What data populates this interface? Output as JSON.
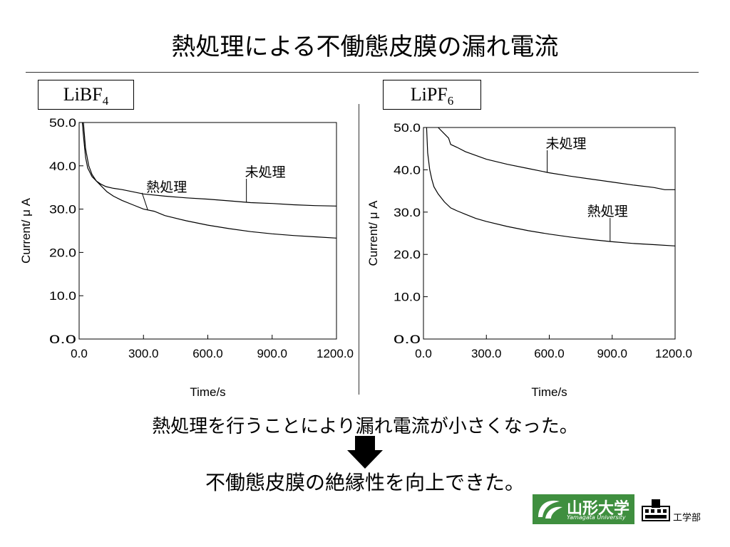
{
  "title": "熱処理による不働態皮膜の漏れ電流",
  "left_box": {
    "base": "LiBF",
    "sub": "4"
  },
  "right_box": {
    "base": "LiPF",
    "sub": "6"
  },
  "sentence": "熱処理を行うことにより漏れ電流が小さくなった。",
  "conclusion": "不働態皮膜の絶縁性を向上できた。",
  "logo": {
    "name": "山形大学",
    "sub": "Yamagata University"
  },
  "faculty": "工学部",
  "colors": {
    "logo_green": "#3f8f3f",
    "line": "#000000"
  },
  "chart_data": [
    {
      "type": "line",
      "title": "LiBF4",
      "xlabel": "Time/s",
      "ylabel": "Current/ μ A",
      "xlim": [
        0,
        1200
      ],
      "ylim": [
        0,
        50
      ],
      "x_ticks": [
        "0.0",
        "300.0",
        "600.0",
        "900.0",
        "1200.0"
      ],
      "y_ticks": [
        "0.0",
        "10.0",
        "20.0",
        "30.0",
        "40.0",
        "50.0"
      ],
      "grid": false,
      "series": [
        {
          "name": "未処理",
          "x": [
            15,
            20,
            30,
            40,
            60,
            80,
            100,
            125,
            160,
            200,
            300,
            400,
            500,
            600,
            700,
            800,
            900,
            1000,
            1100,
            1200
          ],
          "y": [
            50,
            47,
            42,
            39.5,
            37.5,
            36.5,
            35.8,
            35.2,
            34.8,
            34.5,
            33.5,
            33.0,
            32.6,
            32.3,
            31.9,
            31.5,
            31.3,
            31.0,
            30.8,
            30.7
          ]
        },
        {
          "name": "熱処理",
          "x": [
            20,
            30,
            45,
            60,
            80,
            100,
            130,
            160,
            200,
            250,
            300,
            350,
            400,
            500,
            600,
            700,
            800,
            900,
            1000,
            1100,
            1200
          ],
          "y": [
            50,
            44,
            40,
            38,
            36.5,
            35.5,
            34,
            33,
            32,
            31,
            30,
            29.5,
            28.5,
            27.3,
            26.3,
            25.5,
            24.8,
            24.3,
            23.9,
            23.6,
            23.3
          ]
        }
      ],
      "annotations": [
        {
          "text": "熱処理",
          "series": 1,
          "at_x": 320
        },
        {
          "text": "未処理",
          "series": 0,
          "at_x": 780
        }
      ]
    },
    {
      "type": "line",
      "title": "LiPF6",
      "xlabel": "Time/s",
      "ylabel": "Current/ μ A",
      "xlim": [
        0,
        1200
      ],
      "ylim": [
        0,
        50
      ],
      "x_ticks": [
        "0.0",
        "300.0",
        "600.0",
        "900.0",
        "1200.0"
      ],
      "y_ticks": [
        "0.0",
        "10.0",
        "20.0",
        "30.0",
        "40.0",
        "50.0"
      ],
      "grid": false,
      "series": [
        {
          "name": "未処理",
          "x": [
            70,
            100,
            120,
            130,
            160,
            200,
            300,
            400,
            500,
            600,
            700,
            800,
            900,
            1000,
            1100,
            1150,
            1200
          ],
          "y": [
            50,
            48.5,
            47.5,
            46,
            45.3,
            44.3,
            42.5,
            41.3,
            40.3,
            39.3,
            38.5,
            37.8,
            37.1,
            36.4,
            35.8,
            35.3,
            35.3
          ]
        },
        {
          "name": "熱処理",
          "x": [
            15,
            20,
            30,
            40,
            50,
            70,
            100,
            130,
            160,
            200,
            250,
            300,
            400,
            500,
            600,
            700,
            800,
            900,
            1000,
            1100,
            1200
          ],
          "y": [
            50,
            44,
            40,
            37.7,
            36,
            34.3,
            32.4,
            31,
            30.3,
            29.5,
            28.5,
            27.8,
            26.6,
            25.6,
            24.8,
            24.1,
            23.5,
            23.0,
            22.6,
            22.3,
            22.0
          ]
        }
      ],
      "annotations": [
        {
          "text": "未処理",
          "series": 0,
          "at_x": 590
        },
        {
          "text": "熱処理",
          "series": 1,
          "at_x": 890
        }
      ]
    }
  ]
}
